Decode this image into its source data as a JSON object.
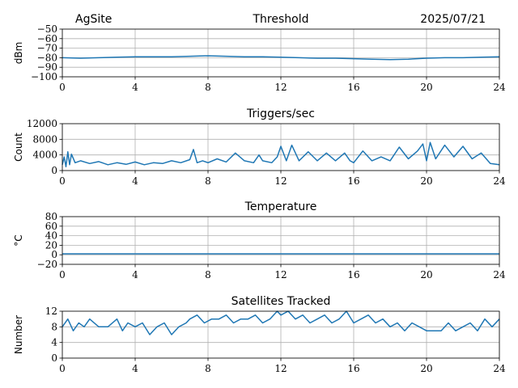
{
  "header": {
    "site": "AgSite",
    "date": "2025/07/21"
  },
  "chart_data": [
    {
      "type": "line",
      "title": "Threshold",
      "ylabel": "dBm",
      "xlim": [
        0,
        24
      ],
      "ylim": [
        -100,
        -50
      ],
      "xticks": [
        0,
        4,
        8,
        12,
        16,
        20,
        24
      ],
      "yticks": [
        -100,
        -90,
        -80,
        -70,
        -60,
        -50
      ],
      "ytick_labels": [
        "−100",
        "−90",
        "−80",
        "−70",
        "−60",
        "−50"
      ],
      "grid": true,
      "color": "#1f77b4",
      "series": [
        {
          "x": [
            0,
            1,
            2,
            3,
            4,
            5,
            6,
            7,
            8,
            9,
            10,
            11,
            12,
            13,
            14,
            15,
            16,
            17,
            18,
            19,
            20,
            21,
            22,
            23,
            24
          ],
          "y": [
            -80,
            -80.5,
            -80,
            -79.5,
            -79,
            -79,
            -79,
            -78.5,
            -78,
            -78.5,
            -79,
            -79,
            -79.5,
            -80,
            -80.5,
            -80.5,
            -81,
            -81.5,
            -82,
            -81.5,
            -80.5,
            -80,
            -80,
            -79.5,
            -79
          ]
        }
      ]
    },
    {
      "type": "line",
      "title": "Triggers/sec",
      "ylabel": "Count",
      "xlim": [
        0,
        24
      ],
      "ylim": [
        0,
        12000
      ],
      "xticks": [
        0,
        4,
        8,
        12,
        16,
        20,
        24
      ],
      "yticks": [
        0,
        4000,
        8000,
        12000
      ],
      "ytick_labels": [
        "0",
        "4000",
        "8000",
        "12000"
      ],
      "grid": true,
      "color": "#1f77b4",
      "series": [
        {
          "x": [
            0,
            0.1,
            0.2,
            0.3,
            0.4,
            0.5,
            0.7,
            1,
            1.5,
            2,
            2.5,
            3,
            3.5,
            4,
            4.5,
            5,
            5.5,
            6,
            6.5,
            7,
            7.2,
            7.4,
            7.7,
            8,
            8.5,
            9,
            9.5,
            10,
            10.5,
            10.8,
            11,
            11.5,
            11.8,
            12,
            12.3,
            12.6,
            13,
            13.5,
            14,
            14.5,
            15,
            15.5,
            15.8,
            16,
            16.5,
            17,
            17.5,
            18,
            18.5,
            19,
            19.5,
            19.8,
            20,
            20.2,
            20.5,
            21,
            21.5,
            22,
            22.5,
            23,
            23.5,
            24
          ],
          "y": [
            1500,
            3500,
            1000,
            4800,
            1500,
            4200,
            2000,
            2500,
            1800,
            2300,
            1500,
            2000,
            1600,
            2200,
            1500,
            2000,
            1800,
            2500,
            2000,
            2800,
            5400,
            2000,
            2500,
            2000,
            3000,
            2200,
            4500,
            2500,
            2000,
            4000,
            2500,
            2000,
            3500,
            6200,
            2500,
            6500,
            2500,
            4800,
            2500,
            4500,
            2500,
            4500,
            2500,
            2000,
            5000,
            2500,
            3500,
            2500,
            6000,
            3000,
            5000,
            6800,
            2500,
            7200,
            3000,
            6500,
            3500,
            6200,
            3000,
            4500,
            1800,
            1500
          ]
        }
      ]
    },
    {
      "type": "line",
      "title": "Temperature",
      "ylabel": "°C",
      "xlim": [
        0,
        24
      ],
      "ylim": [
        -20,
        80
      ],
      "xticks": [
        0,
        4,
        8,
        12,
        16,
        20,
        24
      ],
      "yticks": [
        -20,
        0,
        20,
        40,
        60,
        80
      ],
      "ytick_labels": [
        "−20",
        "0",
        "20",
        "40",
        "60",
        "80"
      ],
      "grid": true,
      "color": "#1f77b4",
      "series": [
        {
          "x": [
            0,
            24
          ],
          "y": [
            2,
            2
          ]
        }
      ]
    },
    {
      "type": "line",
      "title": "Satellites Tracked",
      "ylabel": "Number",
      "xlim": [
        0,
        24
      ],
      "ylim": [
        0,
        12
      ],
      "xticks": [
        0,
        4,
        8,
        12,
        16,
        20,
        24
      ],
      "yticks": [
        0,
        4,
        8,
        12
      ],
      "ytick_labels": [
        "0",
        "4",
        "8",
        "12"
      ],
      "grid": true,
      "color": "#1f77b4",
      "series": [
        {
          "x": [
            0,
            0.3,
            0.6,
            0.9,
            1.2,
            1.5,
            2,
            2.5,
            3,
            3.3,
            3.6,
            4,
            4.4,
            4.8,
            5.2,
            5.6,
            6,
            6.4,
            6.8,
            7,
            7.4,
            7.8,
            8.2,
            8.6,
            9,
            9.4,
            9.8,
            10.2,
            10.6,
            11,
            11.4,
            11.8,
            12,
            12.4,
            12.8,
            13.2,
            13.6,
            14,
            14.4,
            14.8,
            15.2,
            15.6,
            16,
            16.4,
            16.8,
            17.2,
            17.6,
            18,
            18.4,
            18.8,
            19.2,
            19.6,
            20,
            20.4,
            20.8,
            21.2,
            21.6,
            22,
            22.4,
            22.8,
            23.2,
            23.6,
            24
          ],
          "y": [
            8,
            10,
            7,
            9,
            8,
            10,
            8,
            8,
            10,
            7,
            9,
            8,
            9,
            6,
            8,
            9,
            6,
            8,
            9,
            10,
            11,
            9,
            10,
            10,
            11,
            9,
            10,
            10,
            11,
            9,
            10,
            12,
            11,
            12,
            10,
            11,
            9,
            10,
            11,
            9,
            10,
            12,
            9,
            10,
            11,
            9,
            10,
            8,
            9,
            7,
            9,
            8,
            7,
            7,
            7,
            9,
            7,
            8,
            9,
            7,
            10,
            8,
            10
          ]
        }
      ]
    }
  ]
}
